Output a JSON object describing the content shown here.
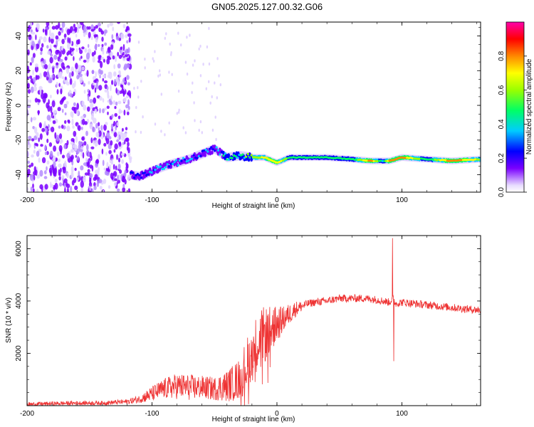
{
  "title": "GN05.2025.127.00.32.G06",
  "chart_data": [
    {
      "type": "heatmap",
      "xlabel": "Height of straight line (km)",
      "ylabel": "Frequency (Hz)",
      "xlim": [
        -200,
        163
      ],
      "ylim": [
        -50,
        48
      ],
      "xticks": [
        "-200",
        "-100",
        "0",
        "100"
      ],
      "yticks": [
        "-40",
        "-20",
        "0",
        "20",
        "40"
      ],
      "colorbar": {
        "label": "Normalized spectral amplitude",
        "range": [
          0,
          1
        ],
        "ticks": [
          "0.0",
          "0.2",
          "0.4",
          "0.6",
          "0.8"
        ],
        "colormap": "hsv-rainbow",
        "colors": [
          "#e8dcff",
          "#7a00ff",
          "#0000ff",
          "#00ccff",
          "#00ff66",
          "#99ff00",
          "#ffff00",
          "#ff8800",
          "#ff0000",
          "#ff00aa"
        ]
      },
      "noise_region": {
        "x_start": -200,
        "x_end": -117,
        "freq_min": -50,
        "freq_max": 48
      },
      "signal_track": [
        {
          "x": -117,
          "freq": -40,
          "amp": 0.25
        },
        {
          "x": -110,
          "freq": -41,
          "amp": 0.3
        },
        {
          "x": -100,
          "freq": -38,
          "amp": 0.35
        },
        {
          "x": -90,
          "freq": -35,
          "amp": 0.4
        },
        {
          "x": -80,
          "freq": -33,
          "amp": 0.4
        },
        {
          "x": -70,
          "freq": -31,
          "amp": 0.35
        },
        {
          "x": -60,
          "freq": -28,
          "amp": 0.35
        },
        {
          "x": -50,
          "freq": -25,
          "amp": 0.3
        },
        {
          "x": -40,
          "freq": -30,
          "amp": 0.45
        },
        {
          "x": -30,
          "freq": -29,
          "amp": 0.5
        },
        {
          "x": -20,
          "freq": -30,
          "amp": 0.6
        },
        {
          "x": -10,
          "freq": -30,
          "amp": 0.8
        },
        {
          "x": 0,
          "freq": -33,
          "amp": 0.85
        },
        {
          "x": 10,
          "freq": -30,
          "amp": 0.55
        },
        {
          "x": 20,
          "freq": -30,
          "amp": 0.6
        },
        {
          "x": 40,
          "freq": -30,
          "amp": 0.55
        },
        {
          "x": 60,
          "freq": -31,
          "amp": 0.5
        },
        {
          "x": 75,
          "freq": -32,
          "amp": 0.95
        },
        {
          "x": 85,
          "freq": -32,
          "amp": 0.4
        },
        {
          "x": 90,
          "freq": -32,
          "amp": 0.9
        },
        {
          "x": 100,
          "freq": -30,
          "amp": 0.95
        },
        {
          "x": 120,
          "freq": -31,
          "amp": 0.5
        },
        {
          "x": 140,
          "freq": -32,
          "amp": 0.95
        },
        {
          "x": 163,
          "freq": -31,
          "amp": 0.7
        }
      ]
    },
    {
      "type": "line",
      "xlabel": "Height of straight line (km)",
      "ylabel": "SNR (10 * v/v)",
      "xlim": [
        -200,
        163
      ],
      "ylim": [
        0,
        6500
      ],
      "xticks": [
        "-200",
        "-100",
        "0",
        "100"
      ],
      "yticks": [
        "2000",
        "4000",
        "6000"
      ],
      "color": "#ee3333",
      "x": [
        -200,
        -180,
        -160,
        -140,
        -120,
        -110,
        -100,
        -90,
        -80,
        -70,
        -60,
        -50,
        -40,
        -30,
        -25,
        -20,
        -15,
        -10,
        -5,
        0,
        5,
        10,
        15,
        20,
        25,
        30,
        40,
        50,
        60,
        70,
        80,
        85,
        90,
        93,
        95,
        100,
        110,
        120,
        130,
        140,
        150,
        163
      ],
      "values": [
        50,
        80,
        100,
        100,
        150,
        250,
        450,
        650,
        750,
        700,
        700,
        650,
        750,
        1000,
        1500,
        2000,
        2500,
        2700,
        2900,
        3100,
        3300,
        3500,
        3700,
        3800,
        3900,
        3950,
        4000,
        4100,
        4100,
        4100,
        4050,
        4000,
        3950,
        4100,
        3900,
        3950,
        3900,
        3850,
        3800,
        3750,
        3700,
        3650
      ],
      "noise_amplitude": [
        80,
        80,
        80,
        80,
        100,
        150,
        300,
        400,
        500,
        500,
        450,
        450,
        600,
        800,
        1000,
        1100,
        1100,
        1100,
        900,
        700,
        500,
        400,
        300,
        200,
        150,
        150,
        150,
        150,
        150,
        150,
        150,
        150,
        150,
        150,
        150,
        150,
        150,
        150,
        150,
        150,
        150,
        150
      ],
      "spikes": [
        {
          "x": 92.5,
          "value": 6400
        },
        {
          "x": 93.5,
          "value": 1700
        }
      ]
    }
  ]
}
